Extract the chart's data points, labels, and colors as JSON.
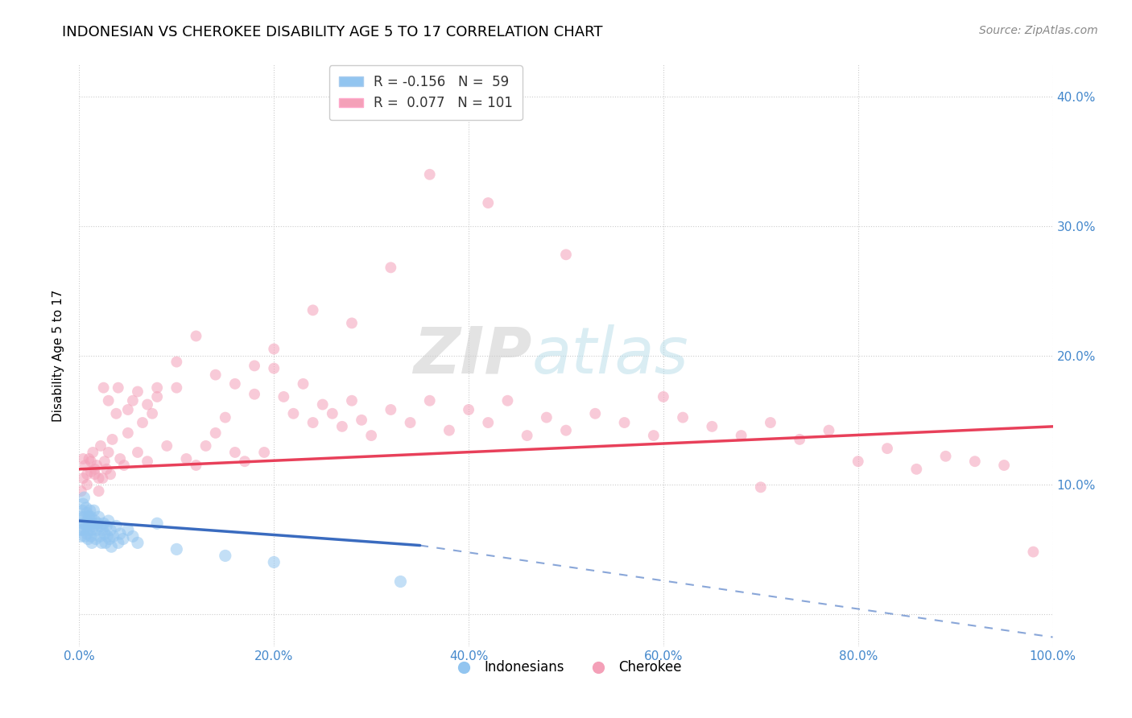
{
  "title": "INDONESIAN VS CHEROKEE DISABILITY AGE 5 TO 17 CORRELATION CHART",
  "source": "Source: ZipAtlas.com",
  "ylabel": "Disability Age 5 to 17",
  "xlim": [
    0,
    1.0
  ],
  "ylim": [
    -0.025,
    0.425
  ],
  "x_ticks": [
    0.0,
    0.2,
    0.4,
    0.6,
    0.8,
    1.0
  ],
  "x_tick_labels": [
    "0.0%",
    "20.0%",
    "40.0%",
    "60.0%",
    "80.0%",
    "100.0%"
  ],
  "y_ticks": [
    0.0,
    0.1,
    0.2,
    0.3,
    0.4
  ],
  "y_tick_labels": [
    "",
    "10.0%",
    "20.0%",
    "30.0%",
    "40.0%"
  ],
  "blue_R": -0.156,
  "blue_N": 59,
  "pink_R": 0.077,
  "pink_N": 101,
  "blue_color": "#92c5f0",
  "pink_color": "#f4a0b8",
  "blue_line_color": "#3a6bbf",
  "pink_line_color": "#e8405a",
  "blue_line_start_y": 0.072,
  "blue_line_end_solid_x": 0.35,
  "blue_line_end_solid_y": 0.053,
  "blue_line_end_dash_x": 1.0,
  "blue_line_end_dash_y": -0.018,
  "pink_line_start_y": 0.112,
  "pink_line_end_y": 0.145,
  "indonesian_x": [
    0.001,
    0.002,
    0.002,
    0.003,
    0.003,
    0.004,
    0.004,
    0.005,
    0.005,
    0.006,
    0.006,
    0.007,
    0.007,
    0.008,
    0.008,
    0.009,
    0.009,
    0.01,
    0.01,
    0.011,
    0.011,
    0.012,
    0.012,
    0.013,
    0.013,
    0.014,
    0.015,
    0.015,
    0.016,
    0.017,
    0.018,
    0.019,
    0.02,
    0.021,
    0.022,
    0.023,
    0.024,
    0.025,
    0.026,
    0.027,
    0.028,
    0.029,
    0.03,
    0.031,
    0.032,
    0.033,
    0.035,
    0.038,
    0.04,
    0.042,
    0.045,
    0.05,
    0.055,
    0.06,
    0.08,
    0.1,
    0.15,
    0.2,
    0.33
  ],
  "indonesian_y": [
    0.065,
    0.075,
    0.06,
    0.08,
    0.07,
    0.085,
    0.065,
    0.09,
    0.075,
    0.06,
    0.07,
    0.082,
    0.068,
    0.078,
    0.062,
    0.072,
    0.058,
    0.075,
    0.065,
    0.08,
    0.07,
    0.06,
    0.075,
    0.065,
    0.055,
    0.07,
    0.08,
    0.068,
    0.072,
    0.058,
    0.065,
    0.07,
    0.075,
    0.06,
    0.068,
    0.055,
    0.065,
    0.07,
    0.062,
    0.055,
    0.068,
    0.06,
    0.072,
    0.058,
    0.065,
    0.052,
    0.06,
    0.068,
    0.055,
    0.062,
    0.058,
    0.065,
    0.06,
    0.055,
    0.07,
    0.05,
    0.045,
    0.04,
    0.025
  ],
  "cherokee_x": [
    0.002,
    0.004,
    0.006,
    0.008,
    0.01,
    0.012,
    0.014,
    0.016,
    0.018,
    0.02,
    0.022,
    0.024,
    0.026,
    0.028,
    0.03,
    0.032,
    0.034,
    0.038,
    0.042,
    0.046,
    0.05,
    0.055,
    0.06,
    0.065,
    0.07,
    0.075,
    0.08,
    0.09,
    0.1,
    0.11,
    0.12,
    0.13,
    0.14,
    0.15,
    0.16,
    0.17,
    0.18,
    0.19,
    0.2,
    0.21,
    0.22,
    0.23,
    0.24,
    0.25,
    0.26,
    0.27,
    0.28,
    0.29,
    0.3,
    0.32,
    0.34,
    0.36,
    0.38,
    0.4,
    0.42,
    0.44,
    0.46,
    0.48,
    0.5,
    0.53,
    0.56,
    0.59,
    0.62,
    0.65,
    0.68,
    0.71,
    0.74,
    0.77,
    0.8,
    0.83,
    0.86,
    0.89,
    0.92,
    0.95,
    0.98,
    0.004,
    0.008,
    0.012,
    0.016,
    0.02,
    0.025,
    0.03,
    0.04,
    0.05,
    0.06,
    0.07,
    0.08,
    0.1,
    0.12,
    0.14,
    0.16,
    0.18,
    0.2,
    0.24,
    0.28,
    0.32,
    0.36,
    0.42,
    0.5,
    0.6,
    0.7
  ],
  "cherokee_y": [
    0.095,
    0.105,
    0.115,
    0.1,
    0.12,
    0.11,
    0.125,
    0.108,
    0.115,
    0.095,
    0.13,
    0.105,
    0.118,
    0.112,
    0.125,
    0.108,
    0.135,
    0.155,
    0.12,
    0.115,
    0.14,
    0.165,
    0.125,
    0.148,
    0.118,
    0.155,
    0.168,
    0.13,
    0.175,
    0.12,
    0.115,
    0.13,
    0.14,
    0.152,
    0.125,
    0.118,
    0.17,
    0.125,
    0.19,
    0.168,
    0.155,
    0.178,
    0.148,
    0.162,
    0.155,
    0.145,
    0.165,
    0.15,
    0.138,
    0.158,
    0.148,
    0.165,
    0.142,
    0.158,
    0.148,
    0.165,
    0.138,
    0.152,
    0.142,
    0.155,
    0.148,
    0.138,
    0.152,
    0.145,
    0.138,
    0.148,
    0.135,
    0.142,
    0.118,
    0.128,
    0.112,
    0.122,
    0.118,
    0.115,
    0.048,
    0.12,
    0.108,
    0.118,
    0.112,
    0.105,
    0.175,
    0.165,
    0.175,
    0.158,
    0.172,
    0.162,
    0.175,
    0.195,
    0.215,
    0.185,
    0.178,
    0.192,
    0.205,
    0.235,
    0.225,
    0.268,
    0.34,
    0.318,
    0.278,
    0.168,
    0.098
  ]
}
